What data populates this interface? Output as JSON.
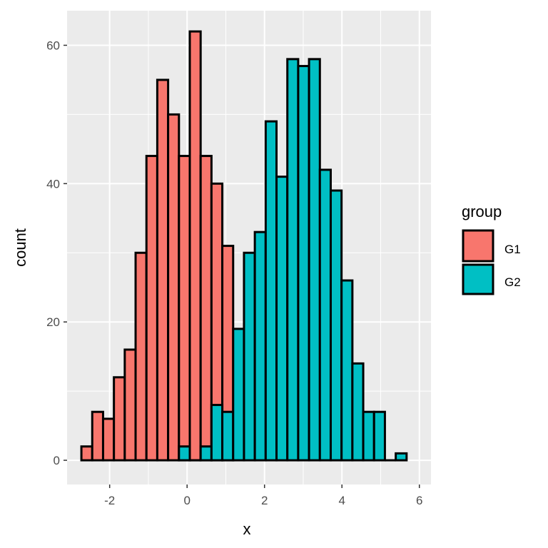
{
  "chart_data": {
    "type": "histogram",
    "xlabel": "x",
    "ylabel": "count",
    "xlim": [
      -3.1,
      6.3
    ],
    "ylim": [
      -3.5,
      65
    ],
    "x_ticks": [
      -2,
      0,
      2,
      4,
      6
    ],
    "x_tick_labels": [
      "-2",
      "0",
      "2",
      "4",
      "6"
    ],
    "y_ticks": [
      0,
      20,
      40,
      60
    ],
    "y_tick_labels": [
      "0",
      "20",
      "40",
      "60"
    ],
    "bin_width": 0.28,
    "bar_outline": "#000000",
    "panel_background": "#ebebeb",
    "grid": true,
    "legend_position": "right",
    "legend": {
      "title": "group",
      "entries": [
        {
          "label": "G1",
          "color": "#f8766d"
        },
        {
          "label": "G2",
          "color": "#00bfc4"
        }
      ]
    },
    "series": [
      {
        "name": "G1",
        "color": "#f8766d",
        "bins": [
          {
            "x": -2.59,
            "count": 2
          },
          {
            "x": -2.31,
            "count": 7
          },
          {
            "x": -2.03,
            "count": 6
          },
          {
            "x": -1.75,
            "count": 12
          },
          {
            "x": -1.47,
            "count": 16
          },
          {
            "x": -1.19,
            "count": 30
          },
          {
            "x": -0.91,
            "count": 44
          },
          {
            "x": -0.63,
            "count": 55
          },
          {
            "x": -0.35,
            "count": 50
          },
          {
            "x": -0.07,
            "count": 44
          },
          {
            "x": 0.21,
            "count": 62
          },
          {
            "x": 0.49,
            "count": 44
          },
          {
            "x": 0.77,
            "count": 40
          },
          {
            "x": 1.05,
            "count": 31
          }
        ]
      },
      {
        "name": "G2",
        "color": "#00bfc4",
        "bins": [
          {
            "x": -0.07,
            "count": 2
          },
          {
            "x": 0.21,
            "count": 0
          },
          {
            "x": 0.49,
            "count": 2
          },
          {
            "x": 0.77,
            "count": 8
          },
          {
            "x": 1.05,
            "count": 7
          },
          {
            "x": 1.33,
            "count": 19
          },
          {
            "x": 1.61,
            "count": 30
          },
          {
            "x": 1.89,
            "count": 33
          },
          {
            "x": 2.17,
            "count": 49
          },
          {
            "x": 2.45,
            "count": 41
          },
          {
            "x": 2.73,
            "count": 58
          },
          {
            "x": 3.01,
            "count": 57
          },
          {
            "x": 3.29,
            "count": 58
          },
          {
            "x": 3.57,
            "count": 42
          },
          {
            "x": 3.85,
            "count": 39
          },
          {
            "x": 4.13,
            "count": 26
          },
          {
            "x": 4.41,
            "count": 14
          },
          {
            "x": 4.69,
            "count": 7
          },
          {
            "x": 4.97,
            "count": 7
          },
          {
            "x": 5.25,
            "count": 0
          },
          {
            "x": 5.53,
            "count": 1
          }
        ]
      }
    ]
  }
}
